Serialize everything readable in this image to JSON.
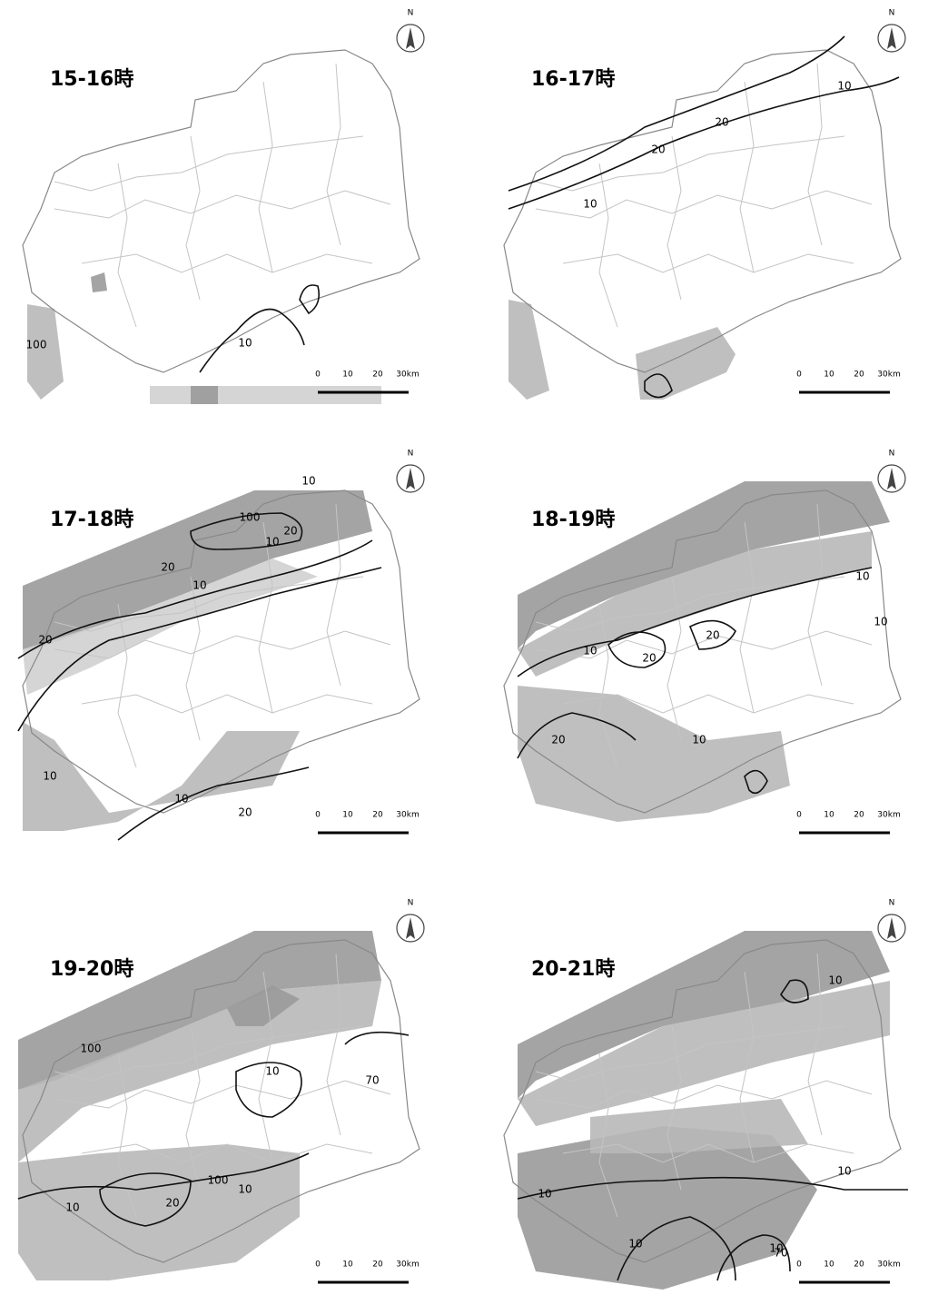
{
  "panels": [
    {
      "title": "15-16時",
      "north": "N",
      "scale_labels": [
        "0",
        "10",
        "20",
        "30km"
      ],
      "contour_labels": [
        "10",
        "100"
      ]
    },
    {
      "title": "16-17時",
      "north": "N",
      "scale_labels": [
        "0",
        "10",
        "20",
        "30km"
      ],
      "contour_labels": [
        "10",
        "20",
        "20",
        "10"
      ]
    },
    {
      "title": "17-18時",
      "north": "N",
      "scale_labels": [
        "0",
        "10",
        "20",
        "30km"
      ],
      "contour_labels": [
        "10",
        "10",
        "20",
        "100",
        "20",
        "10",
        "20",
        "10",
        "10",
        "20"
      ]
    },
    {
      "title": "18-19時",
      "north": "N",
      "scale_labels": [
        "0",
        "10",
        "20",
        "30km"
      ],
      "contour_labels": [
        "10",
        "10",
        "20",
        "20",
        "10",
        "20",
        "10"
      ]
    },
    {
      "title": "19-20時",
      "north": "N",
      "scale_labels": [
        "0",
        "10",
        "20",
        "30km"
      ],
      "contour_labels": [
        "10",
        "70",
        "100",
        "10",
        "10",
        "20",
        "100"
      ]
    },
    {
      "title": "20-21時",
      "north": "N",
      "scale_labels": [
        "0",
        "10",
        "20",
        "30km"
      ],
      "contour_labels": [
        "10",
        "10",
        "10",
        "10",
        "10",
        "70"
      ]
    }
  ]
}
